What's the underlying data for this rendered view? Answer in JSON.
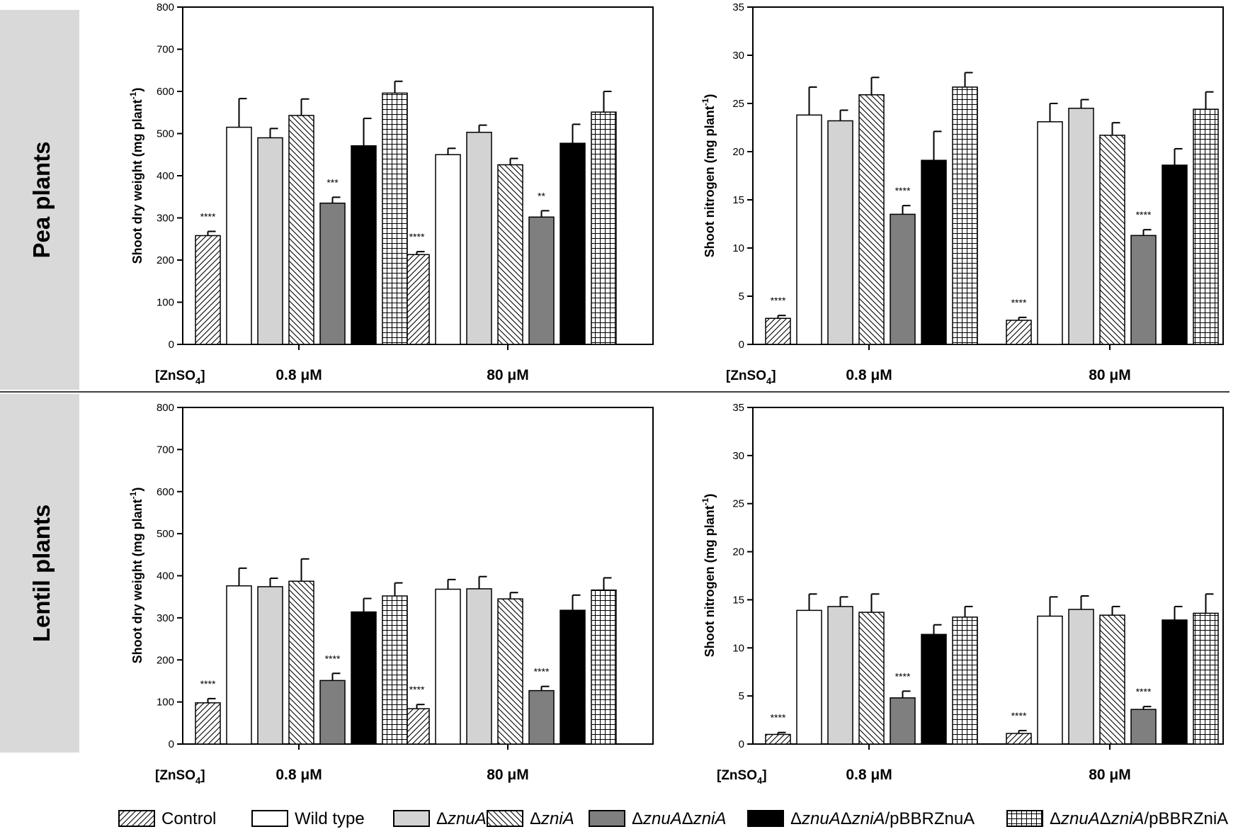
{
  "colors": {
    "control": "#ffffff",
    "wild_type": "#ffffff",
    "znuA": "#d3d3d3",
    "zniA": "#ffffff",
    "znuA_zniA": "#7f7f7f",
    "znuA_zniA_pBBRZnuA": "#000000",
    "znuA_zniA_pBBRZniA": "#ffffff",
    "row_label_bg": "#d9d9d9",
    "axis": "#000000"
  },
  "row_labels": [
    "Pea plants",
    "Lentil plants"
  ],
  "legend": [
    {
      "key": "control",
      "label": "Control",
      "pattern": "hatch-right"
    },
    {
      "key": "wild_type",
      "label": "Wild type",
      "pattern": "white"
    },
    {
      "key": "znuA",
      "label": "ΔznuA",
      "pattern": "lightgray"
    },
    {
      "key": "zniA",
      "label": "ΔzniA",
      "pattern": "hatch-left"
    },
    {
      "key": "znuA_zniA",
      "label": "ΔznuAΔzniA",
      "pattern": "darkgray"
    },
    {
      "key": "znuA_zniA_pBBRZnuA",
      "label": "ΔznuAΔzniA/pBBRZnuA",
      "pattern": "black"
    },
    {
      "key": "znuA_zniA_pBBRZniA",
      "label": "ΔznuAΔzniA/pBBRZniA",
      "pattern": "grid"
    }
  ],
  "chart_data": [
    {
      "type": "bar",
      "panel": "pea-dry-weight",
      "row": "Pea plants",
      "ylabel": "Shoot dry weight (mg plant-1)",
      "ylim": [
        0,
        800
      ],
      "yticks": [
        0,
        100,
        200,
        300,
        400,
        500,
        600,
        700,
        800
      ],
      "x_title": "[ZnSO4]",
      "categories": [
        "0.8 μM",
        "80 μM"
      ],
      "series": [
        {
          "name": "Control",
          "values": [
            258,
            213
          ],
          "errors": [
            10,
            7
          ],
          "sig": [
            "****",
            "****"
          ]
        },
        {
          "name": "Wild type",
          "values": [
            515,
            450
          ],
          "errors": [
            68,
            15
          ],
          "sig": [
            "",
            ""
          ]
        },
        {
          "name": "ΔznuA",
          "values": [
            490,
            503
          ],
          "errors": [
            22,
            17
          ],
          "sig": [
            "",
            ""
          ]
        },
        {
          "name": "ΔzniA",
          "values": [
            543,
            426
          ],
          "errors": [
            39,
            15
          ],
          "sig": [
            "",
            ""
          ]
        },
        {
          "name": "ΔznuAΔzniA",
          "values": [
            335,
            302
          ],
          "errors": [
            14,
            15
          ],
          "sig": [
            "***",
            "**"
          ]
        },
        {
          "name": "ΔznuAΔzniA/pBBRZnuA",
          "values": [
            471,
            477
          ],
          "errors": [
            65,
            45
          ],
          "sig": [
            "",
            ""
          ]
        },
        {
          "name": "ΔznuAΔzniA/pBBRZniA",
          "values": [
            596,
            551
          ],
          "errors": [
            28,
            49
          ],
          "sig": [
            "",
            ""
          ]
        }
      ]
    },
    {
      "type": "bar",
      "panel": "pea-nitrogen",
      "row": "Pea plants",
      "ylabel": "Shoot nitrogen (mg plant-1)",
      "ylim": [
        0,
        35
      ],
      "yticks": [
        0,
        5,
        10,
        15,
        20,
        25,
        30,
        35
      ],
      "x_title": "[ZnSO4]",
      "categories": [
        "0.8 μM",
        "80 μM"
      ],
      "series": [
        {
          "name": "Control",
          "values": [
            2.7,
            2.5
          ],
          "errors": [
            0.3,
            0.3
          ],
          "sig": [
            "****",
            "****"
          ]
        },
        {
          "name": "Wild type",
          "values": [
            23.8,
            23.1
          ],
          "errors": [
            2.9,
            1.9
          ],
          "sig": [
            "",
            ""
          ]
        },
        {
          "name": "ΔznuA",
          "values": [
            23.2,
            24.5
          ],
          "errors": [
            1.1,
            0.9
          ],
          "sig": [
            "",
            ""
          ]
        },
        {
          "name": "ΔzniA",
          "values": [
            25.9,
            21.7
          ],
          "errors": [
            1.8,
            1.3
          ],
          "sig": [
            "",
            ""
          ]
        },
        {
          "name": "ΔznuAΔzniA",
          "values": [
            13.5,
            11.3
          ],
          "errors": [
            0.9,
            0.6
          ],
          "sig": [
            "****",
            "****"
          ]
        },
        {
          "name": "ΔznuAΔzniA/pBBRZnuA",
          "values": [
            19.1,
            18.6
          ],
          "errors": [
            3.0,
            1.7
          ],
          "sig": [
            "",
            ""
          ]
        },
        {
          "name": "ΔznuAΔzniA/pBBRZniA",
          "values": [
            26.7,
            24.4
          ],
          "errors": [
            1.5,
            1.8
          ],
          "sig": [
            "",
            ""
          ]
        }
      ]
    },
    {
      "type": "bar",
      "panel": "lentil-dry-weight",
      "row": "Lentil plants",
      "ylabel": "Shoot dry weight (mg plant-1)",
      "ylim": [
        0,
        800
      ],
      "yticks": [
        0,
        100,
        200,
        300,
        400,
        500,
        600,
        700,
        800
      ],
      "x_title": "[ZnSO4]",
      "categories": [
        "0.8 μM",
        "80 μM"
      ],
      "series": [
        {
          "name": "Control",
          "values": [
            98,
            84
          ],
          "errors": [
            10,
            10
          ],
          "sig": [
            "****",
            "****"
          ]
        },
        {
          "name": "Wild type",
          "values": [
            376,
            368
          ],
          "errors": [
            42,
            23
          ],
          "sig": [
            "",
            ""
          ]
        },
        {
          "name": "ΔznuA",
          "values": [
            374,
            369
          ],
          "errors": [
            20,
            29
          ],
          "sig": [
            "",
            ""
          ]
        },
        {
          "name": "ΔzniA",
          "values": [
            387,
            345
          ],
          "errors": [
            53,
            15
          ],
          "sig": [
            "",
            ""
          ]
        },
        {
          "name": "ΔznuAΔzniA",
          "values": [
            151,
            127
          ],
          "errors": [
            17,
            10
          ],
          "sig": [
            "****",
            "****"
          ]
        },
        {
          "name": "ΔznuAΔzniA/pBBRZnuA",
          "values": [
            314,
            318
          ],
          "errors": [
            32,
            36
          ],
          "sig": [
            "",
            ""
          ]
        },
        {
          "name": "ΔznuAΔzniA/pBBRZniA",
          "values": [
            352,
            366
          ],
          "errors": [
            31,
            29
          ],
          "sig": [
            "",
            ""
          ]
        }
      ]
    },
    {
      "type": "bar",
      "panel": "lentil-nitrogen",
      "row": "Lentil plants",
      "ylabel": "Shoot nitrogen (mg plant-1)",
      "ylim": [
        0,
        35
      ],
      "yticks": [
        0,
        5,
        10,
        15,
        20,
        25,
        30,
        35
      ],
      "x_title": "[ZnSO4]",
      "categories": [
        "0.8 μM",
        "80 μM"
      ],
      "series": [
        {
          "name": "Control",
          "values": [
            1.0,
            1.1
          ],
          "errors": [
            0.2,
            0.3
          ],
          "sig": [
            "****",
            "****"
          ]
        },
        {
          "name": "Wild type",
          "values": [
            13.9,
            13.3
          ],
          "errors": [
            1.7,
            2.0
          ],
          "sig": [
            "",
            ""
          ]
        },
        {
          "name": "ΔznuA",
          "values": [
            14.3,
            14.0
          ],
          "errors": [
            1.0,
            1.4
          ],
          "sig": [
            "",
            ""
          ]
        },
        {
          "name": "ΔzniA",
          "values": [
            13.7,
            13.4
          ],
          "errors": [
            1.9,
            0.9
          ],
          "sig": [
            "",
            ""
          ]
        },
        {
          "name": "ΔznuAΔzniA",
          "values": [
            4.8,
            3.6
          ],
          "errors": [
            0.7,
            0.3
          ],
          "sig": [
            "****",
            "****"
          ]
        },
        {
          "name": "ΔznuAΔzniA/pBBRZnuA",
          "values": [
            11.4,
            12.9
          ],
          "errors": [
            1.0,
            1.4
          ],
          "sig": [
            "",
            ""
          ]
        },
        {
          "name": "ΔznuAΔzniA/pBBRZniA",
          "values": [
            13.2,
            13.6
          ],
          "errors": [
            1.1,
            2.0
          ],
          "sig": [
            "",
            ""
          ]
        }
      ]
    }
  ]
}
